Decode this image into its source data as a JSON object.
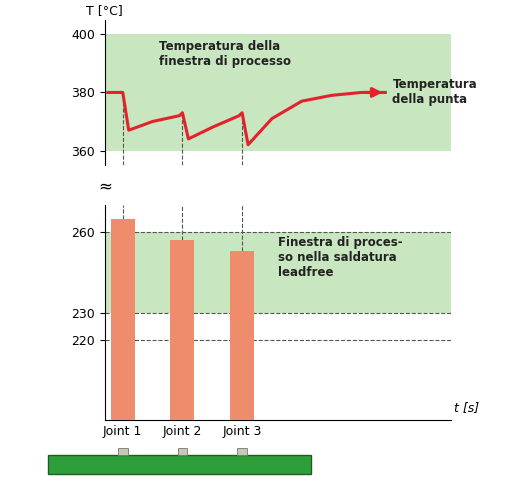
{
  "chart_data": [
    {
      "type": "line",
      "y_label": "T [°C]",
      "x": [
        -0.25,
        0,
        0.1,
        0.5,
        0.95,
        1.0,
        1.1,
        1.5,
        1.95,
        2.0,
        2.1,
        2.5,
        3.0,
        3.5,
        4.0,
        4.4
      ],
      "series": [
        {
          "name": "Temperatura\ndella punta",
          "color": "#e3222b",
          "values": [
            380,
            380,
            367,
            370,
            372,
            373,
            364,
            368,
            372,
            373,
            362,
            371,
            377,
            379,
            380,
            380
          ]
        }
      ],
      "ylim": [
        355,
        405
      ],
      "yticks": [
        360,
        380,
        400
      ],
      "bands": [
        {
          "range": [
            360,
            400
          ],
          "label": "Temperatura della\nfinestra di processo",
          "color": "#c8e6bf"
        }
      ]
    },
    {
      "type": "bar",
      "categories": [
        "Joint 1",
        "Joint 2",
        "Joint 3"
      ],
      "values": [
        265,
        257,
        253
      ],
      "color": "#ef8c6c",
      "xlim": [
        -0.3,
        5.5
      ],
      "ylim": [
        190,
        270
      ],
      "yticks": [
        220,
        230,
        260
      ],
      "grid": true,
      "x_label": "t [s]",
      "break_mark": "≈",
      "bands": [
        {
          "range": [
            230,
            260
          ],
          "label": "Finestra di proces-\nso nella saldatura\nleadfree",
          "color": "#c8e6bf"
        }
      ]
    }
  ]
}
